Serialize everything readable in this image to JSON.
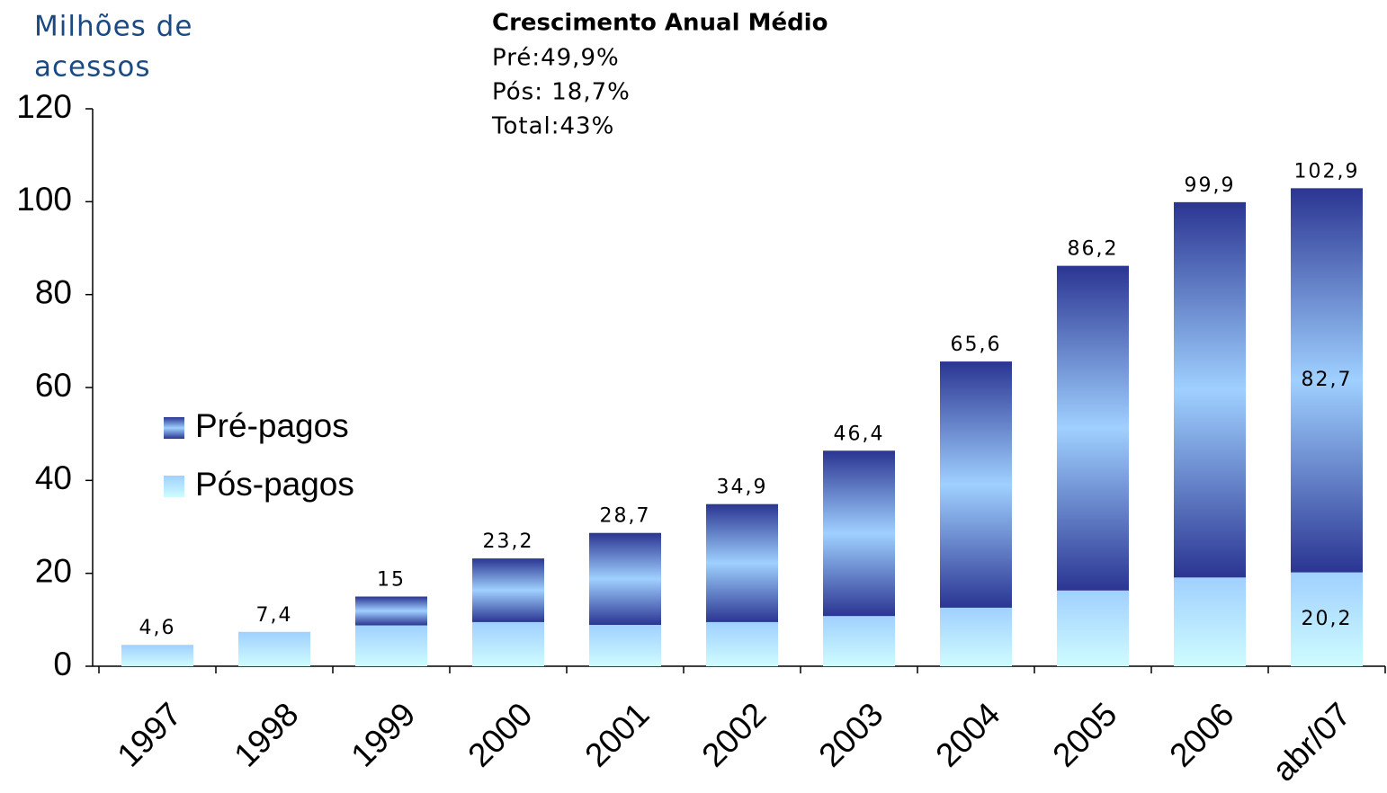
{
  "chart_data": {
    "type": "stacked_bar",
    "ylabel": [
      "Milhões de",
      "acessos"
    ],
    "annotation": {
      "title": "Crescimento Anual Médio",
      "lines": [
        "Pré:49,9%",
        "Pós: 18,7%",
        "Total:43%"
      ]
    },
    "categories": [
      "1997",
      "1998",
      "1999",
      "2000",
      "2001",
      "2002",
      "2003",
      "2004",
      "2005",
      "2006",
      "abr/07"
    ],
    "series": [
      {
        "name": "Pós-pagos",
        "color": "#a3d5ff",
        "gradient": [
          "#a0d0ff",
          "#cffcff"
        ],
        "values": [
          4.6,
          7.4,
          8.8,
          9.5,
          8.9,
          9.5,
          10.8,
          12.6,
          16.3,
          19.1,
          20.2
        ],
        "value_labels": [
          null,
          null,
          null,
          null,
          null,
          null,
          null,
          null,
          null,
          null,
          "20,2"
        ]
      },
      {
        "name": "Pré-pagos",
        "color": "#2b3a92",
        "gradient": [
          "#2b3592",
          "#9fd0ff",
          "#2b3592"
        ],
        "values": [
          0,
          0,
          6.2,
          13.7,
          19.8,
          25.4,
          35.6,
          53.0,
          69.9,
          80.8,
          82.7
        ],
        "value_labels": [
          null,
          null,
          null,
          null,
          null,
          null,
          null,
          null,
          null,
          null,
          "82,7"
        ]
      }
    ],
    "totals": {
      "values": [
        4.6,
        7.4,
        15,
        23.2,
        28.7,
        34.9,
        46.4,
        65.6,
        86.2,
        99.9,
        102.9
      ],
      "value_labels": [
        "4,6",
        "7,4",
        "15",
        "23,2",
        "28,7",
        "34,9",
        "46,4",
        "65,6",
        "86,2",
        "99,9",
        "102,9"
      ]
    },
    "ylim": [
      0,
      120
    ],
    "yticks": [
      0,
      20,
      40,
      60,
      80,
      100,
      120
    ],
    "legend": "left"
  }
}
